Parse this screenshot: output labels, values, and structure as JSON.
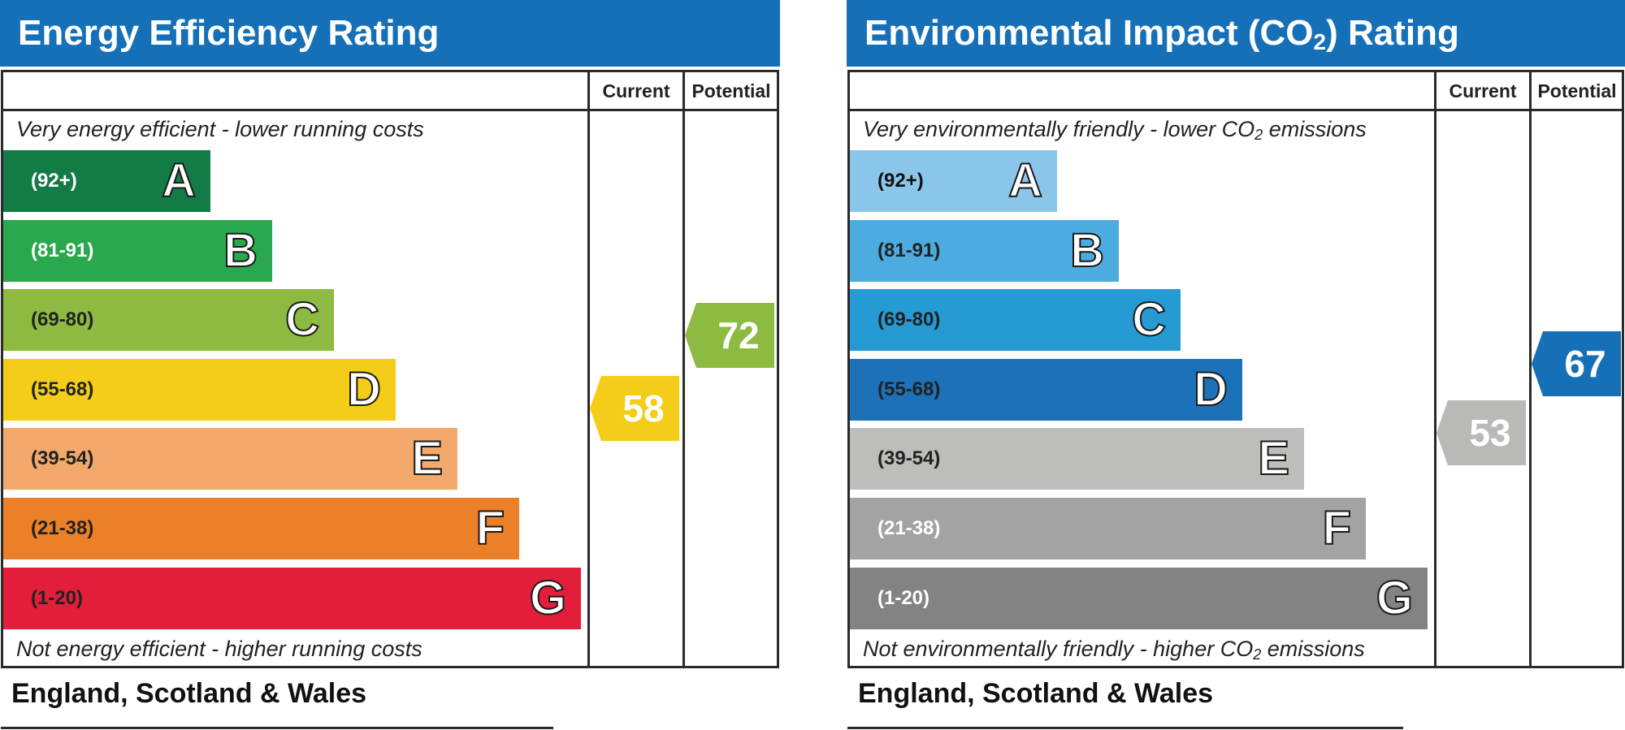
{
  "chart_data": [
    {
      "type": "bar",
      "title": "Energy Efficiency Rating",
      "columns": [
        "Current",
        "Potential"
      ],
      "top_note": "Very energy efficient - lower running costs",
      "bottom_note": "Not energy efficient - higher running costs",
      "footer": "England, Scotland & Wales",
      "bands": [
        {
          "letter": "A",
          "range": "(92+)",
          "color": "#137c46",
          "text_color": "#ffffff"
        },
        {
          "letter": "B",
          "range": "(81-91)",
          "color": "#2aa84e",
          "text_color": "#ffffff"
        },
        {
          "letter": "C",
          "range": "(69-80)",
          "color": "#8dbb41",
          "text_color": "#222222"
        },
        {
          "letter": "D",
          "range": "(55-68)",
          "color": "#f5cd18",
          "text_color": "#222222"
        },
        {
          "letter": "E",
          "range": "(39-54)",
          "color": "#f2a96b",
          "text_color": "#222222"
        },
        {
          "letter": "F",
          "range": "(21-38)",
          "color": "#ec8028",
          "text_color": "#222222"
        },
        {
          "letter": "G",
          "range": "(1-20)",
          "color": "#e31e3a",
          "text_color": "#222222"
        }
      ],
      "current": {
        "value": 58,
        "color": "#f5cd18"
      },
      "potential": {
        "value": 72,
        "color": "#8dbb41"
      }
    },
    {
      "type": "bar",
      "title": "Environmental Impact (CO2) Rating",
      "title_parts": [
        "Environmental Impact (CO",
        "2",
        ") Rating"
      ],
      "columns": [
        "Current",
        "Potential"
      ],
      "top_note": "Very environmentally friendly - lower CO2 emissions",
      "top_note_parts": [
        "Very environmentally friendly - lower CO",
        "2",
        " emissions"
      ],
      "bottom_note": "Not environmentally friendly - higher CO2 emissions",
      "bottom_note_parts": [
        "Not environmentally friendly - higher CO",
        "2",
        " emissions"
      ],
      "footer": "England, Scotland & Wales",
      "bands": [
        {
          "letter": "A",
          "range": "(92+)",
          "color": "#8ac6ea",
          "text_color": "#111111"
        },
        {
          "letter": "B",
          "range": "(81-91)",
          "color": "#4cacdf",
          "text_color": "#222222"
        },
        {
          "letter": "C",
          "range": "(69-80)",
          "color": "#259ad3",
          "text_color": "#222222"
        },
        {
          "letter": "D",
          "range": "(55-68)",
          "color": "#1d71b8",
          "text_color": "#222222"
        },
        {
          "letter": "E",
          "range": "(39-54)",
          "color": "#bdbdbb",
          "text_color": "#222222"
        },
        {
          "letter": "F",
          "range": "(21-38)",
          "color": "#a3a3a3",
          "text_color": "#ffffff"
        },
        {
          "letter": "G",
          "range": "(1-20)",
          "color": "#838383",
          "text_color": "#ffffff"
        }
      ],
      "current": {
        "value": 53,
        "color": "#b9b9b8"
      },
      "potential": {
        "value": 67,
        "color": "#1670b7"
      }
    }
  ]
}
